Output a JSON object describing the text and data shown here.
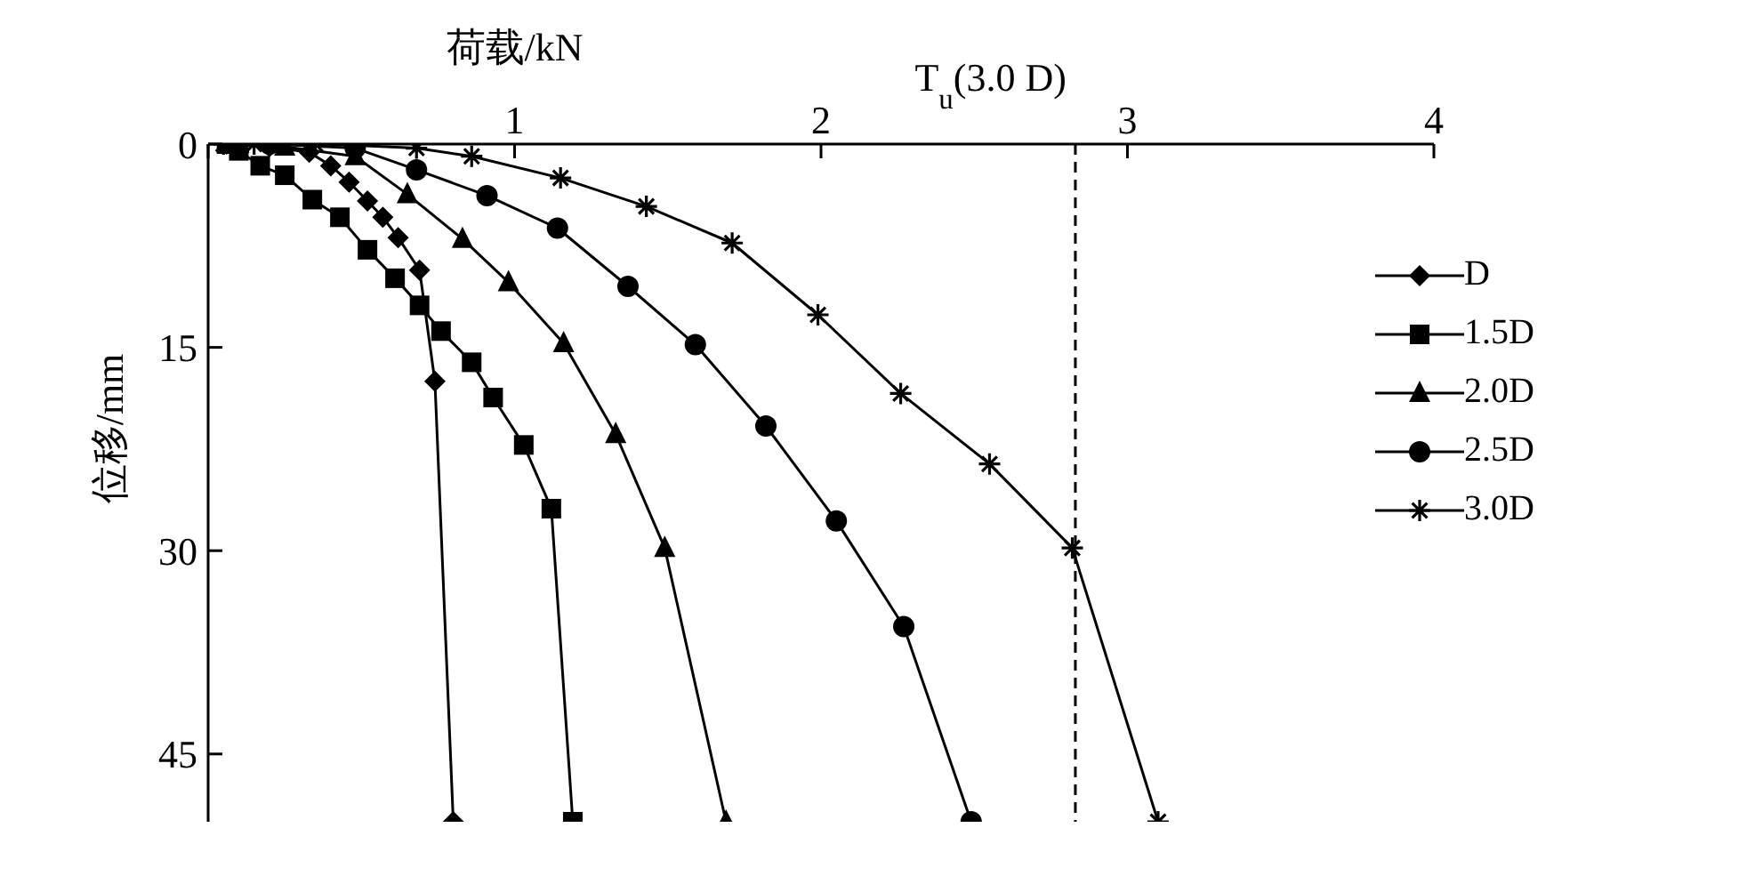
{
  "chart_data": {
    "type": "line",
    "xlabel": "荷载/kN",
    "ylabel": "位移/mm",
    "xlim": [
      0,
      4
    ],
    "xticks": [
      {
        "value": 0,
        "label": null
      },
      1,
      2,
      3,
      4
    ],
    "ylim": [
      50,
      0
    ],
    "yticks": [
      0,
      15,
      30,
      45
    ],
    "legend": "right",
    "line_style": "solid",
    "ref_lines": [
      {
        "axis": "x",
        "value": 2.83,
        "label": "T$_{u}$(3.0 D)",
        "color": "#000000",
        "line_style": "dashed"
      }
    ],
    "series": [
      {
        "name": "D",
        "color": "#000000",
        "marker": "diamond",
        "x": [
          0.06,
          0.2,
          0.33,
          0.4,
          0.46,
          0.52,
          0.57,
          0.62,
          0.69,
          0.74,
          0.8
        ],
        "values": [
          0,
          0.2,
          0.6,
          1.6,
          2.8,
          4.2,
          5.4,
          6.9,
          9.3,
          17.5,
          50
        ]
      },
      {
        "name": "1.5D",
        "color": "#000000",
        "marker": "square",
        "x": [
          0.06,
          0.1,
          0.17,
          0.25,
          0.34,
          0.43,
          0.52,
          0.61,
          0.69,
          0.76,
          0.86,
          0.93,
          1.03,
          1.12,
          1.19
        ],
        "values": [
          0,
          0.5,
          1.6,
          2.3,
          4.1,
          5.4,
          7.8,
          9.9,
          11.9,
          13.8,
          16.1,
          18.7,
          22.2,
          26.9,
          50
        ]
      },
      {
        "name": "2.0D",
        "color": "#000000",
        "marker": "triangle",
        "x": [
          0.1,
          0.25,
          0.48,
          0.65,
          0.83,
          0.98,
          1.16,
          1.33,
          1.49,
          1.69
        ],
        "values": [
          0,
          0.2,
          0.9,
          3.7,
          7,
          10.2,
          14.7,
          21.4,
          29.8,
          50
        ]
      },
      {
        "name": "2.5D",
        "color": "#000000",
        "marker": "circle",
        "x": [
          0.2,
          0.48,
          0.68,
          0.91,
          1.14,
          1.37,
          1.59,
          1.82,
          2.05,
          2.27,
          2.49
        ],
        "values": [
          0,
          0.3,
          1.9,
          3.8,
          6.2,
          10.5,
          14.8,
          20.8,
          27.8,
          35.6,
          50
        ]
      },
      {
        "name": "3.0D",
        "color": "#000000",
        "marker": "cross",
        "x": [
          0.05,
          0.15,
          0.35,
          0.48,
          0.68,
          0.86,
          1.15,
          1.43,
          1.71,
          1.99,
          2.26,
          2.55,
          2.82,
          3.1
        ],
        "values": [
          0,
          0,
          0,
          0.1,
          0.3,
          0.9,
          2.5,
          4.6,
          7.3,
          12.6,
          18.4,
          23.6,
          29.8,
          50
        ]
      }
    ]
  }
}
